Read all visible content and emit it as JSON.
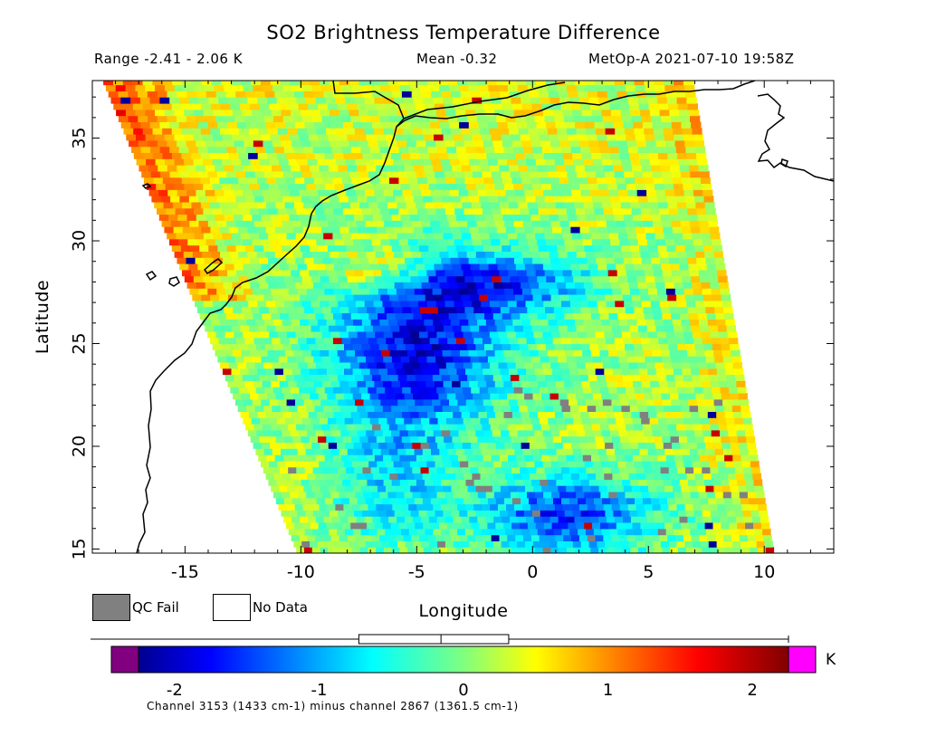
{
  "header": {
    "title": "SO2 Brightness Temperature Difference",
    "range_text": "Range -2.41 - 2.06 K",
    "mean_text": "Mean -0.32",
    "satellite_text": "MetOp-A 2021-07-10 19:58Z"
  },
  "legend": {
    "qc_fail_label": "QC Fail",
    "qc_fail_color": "#808080",
    "no_data_label": "No Data",
    "no_data_color": "#ffffff"
  },
  "colorbar": {
    "unit": "K",
    "ticks": [
      "-2",
      "-1",
      "0",
      "1",
      "2"
    ],
    "tick_values": [
      -2,
      -1,
      0,
      1,
      2
    ],
    "range": [
      -2.25,
      2.25
    ],
    "under_color": "#800080",
    "over_color": "#ff00ff",
    "box_whisker": {
      "min": -2.41,
      "q1": -0.85,
      "median": -0.3,
      "q3": 0.15,
      "max": 2.06
    }
  },
  "footnote": "Channel 3153 (1433 cm-1) minus channel 2867 (1361.5 cm-1)",
  "chart_data": {
    "type": "heatmap",
    "title": "SO2 Brightness Temperature Difference",
    "xlabel": "Longitude",
    "ylabel": "Latitude",
    "xlim": [
      -19,
      13
    ],
    "ylim": [
      14.8,
      37.8
    ],
    "x_ticks": [
      "-15",
      "-10",
      "-5",
      "0",
      "5",
      "10"
    ],
    "x_tick_values": [
      -15,
      -10,
      -5,
      0,
      5,
      10
    ],
    "y_ticks": [
      "15",
      "20",
      "25",
      "30",
      "35"
    ],
    "y_tick_values": [
      15,
      20,
      25,
      30,
      35
    ],
    "units": "K",
    "value_range": [
      -2.41,
      2.06
    ],
    "mean": -0.32,
    "swath_corners": {
      "top_west": [
        -18.6,
        37.8
      ],
      "top_east": [
        6.9,
        37.8
      ],
      "bottom_west": [
        -10.2,
        14.8
      ],
      "bottom_east": [
        10.4,
        14.8
      ]
    },
    "features": [
      {
        "name": "warm anomaly along west swath edge",
        "lon": -15,
        "lat": 32.5,
        "value": 1.2
      },
      {
        "name": "negative SO2 signal core",
        "lon": -5,
        "lat": 24.5,
        "value": -1.9
      },
      {
        "name": "negative band east",
        "lon": -1.5,
        "lat": 27.8,
        "value": -1.5
      },
      {
        "name": "southern negative area",
        "lon": 1,
        "lat": 16.5,
        "value": -1.8
      },
      {
        "name": "elevated northern band",
        "lon": 2,
        "lat": 34,
        "value": 0.5
      },
      {
        "name": "eastern swath edge",
        "lon": 7,
        "lat": 24,
        "value": 0.6
      }
    ],
    "grid": false,
    "coastline": true
  }
}
